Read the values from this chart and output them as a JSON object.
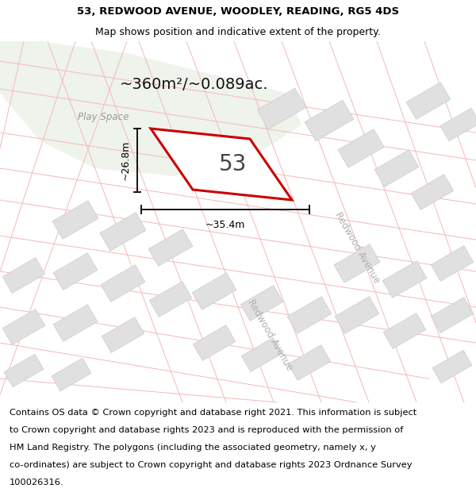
{
  "title_line1": "53, REDWOOD AVENUE, WOODLEY, READING, RG5 4DS",
  "title_line2": "Map shows position and indicative extent of the property.",
  "area_label": "~360m²/~0.089ac.",
  "number_label": "53",
  "dim_width": "~35.4m",
  "dim_height": "~26.8m",
  "play_space_label": "Play Space",
  "redwood_avenue_label": "Redwood Avenue",
  "map_bg": "#ffffff",
  "green_area_color": "#eef3ec",
  "plot_outline_color": "#cc0000",
  "road_line_color": "#f5b8b8",
  "road_line_color2": "#e8c8c8",
  "building_color": "#e0e0e0",
  "building_edge_color": "#cccccc",
  "title_fontsize": 9.5,
  "footer_fontsize": 8.2,
  "footer_lines": [
    "Contains OS data © Crown copyright and database right 2021. This information is subject",
    "to Crown copyright and database rights 2023 and is reproduced with the permission of",
    "HM Land Registry. The polygons (including the associated geometry, namely x, y",
    "co-ordinates) are subject to Crown copyright and database rights 2023 Ordnance Survey",
    "100026316."
  ]
}
